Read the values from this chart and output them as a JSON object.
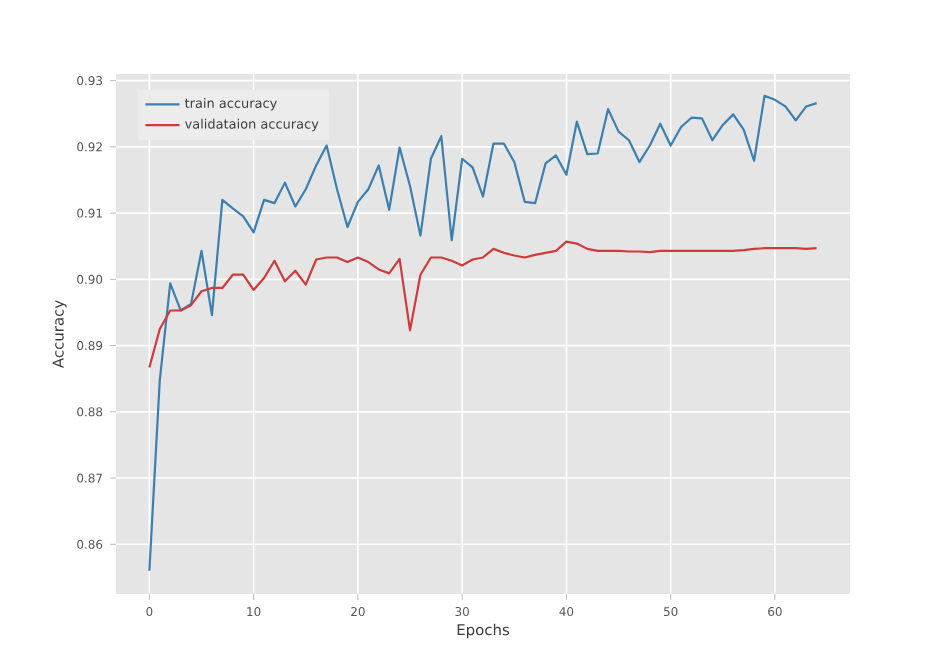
{
  "chart_data": {
    "type": "line",
    "xlabel": "Epochs",
    "ylabel": "Accuracy",
    "x": [
      0,
      1,
      2,
      3,
      4,
      5,
      6,
      7,
      8,
      9,
      10,
      11,
      12,
      13,
      14,
      15,
      16,
      17,
      18,
      19,
      20,
      21,
      22,
      23,
      24,
      25,
      26,
      27,
      28,
      29,
      30,
      31,
      32,
      33,
      34,
      35,
      36,
      37,
      38,
      39,
      40,
      41,
      42,
      43,
      44,
      45,
      46,
      47,
      48,
      49,
      50,
      51,
      52,
      53,
      54,
      55,
      56,
      57,
      58,
      59,
      60,
      61,
      62,
      63,
      64
    ],
    "series": [
      {
        "name": "train accuracy",
        "color": "#3a7fb0",
        "values": [
          0.856,
          0.8848,
          0.8994,
          0.8953,
          0.8963,
          0.9043,
          0.8946,
          0.912,
          0.9107,
          0.9095,
          0.9071,
          0.912,
          0.9115,
          0.9146,
          0.911,
          0.9136,
          0.9172,
          0.9202,
          0.9136,
          0.9079,
          0.9117,
          0.9136,
          0.9172,
          0.9105,
          0.9199,
          0.9141,
          0.9066,
          0.9182,
          0.9216,
          0.9059,
          0.9182,
          0.9169,
          0.9125,
          0.9205,
          0.9205,
          0.9177,
          0.9117,
          0.9115,
          0.9175,
          0.9187,
          0.9158,
          0.9238,
          0.9189,
          0.919,
          0.9257,
          0.9223,
          0.921,
          0.9177,
          0.9202,
          0.9235,
          0.9202,
          0.923,
          0.9244,
          0.9243,
          0.921,
          0.9233,
          0.9249,
          0.9226,
          0.9179,
          0.9277,
          0.9271,
          0.9261,
          0.924,
          0.9261,
          0.9266
        ]
      },
      {
        "name": "validataion accuracy",
        "color": "#d03a3a",
        "values": [
          0.8867,
          0.8925,
          0.8953,
          0.8953,
          0.8961,
          0.8982,
          0.8987,
          0.8987,
          0.9007,
          0.9007,
          0.8984,
          0.9002,
          0.9028,
          0.8997,
          0.9013,
          0.8992,
          0.903,
          0.9033,
          0.9033,
          0.9026,
          0.9033,
          0.9026,
          0.9015,
          0.9009,
          0.9031,
          0.8923,
          0.9007,
          0.9033,
          0.9033,
          0.9028,
          0.9021,
          0.903,
          0.9033,
          0.9046,
          0.904,
          0.9036,
          0.9033,
          0.9037,
          0.904,
          0.9043,
          0.9057,
          0.9054,
          0.9046,
          0.9043,
          0.9043,
          0.9043,
          0.9042,
          0.9042,
          0.9041,
          0.9043,
          0.9043,
          0.9043,
          0.9043,
          0.9043,
          0.9043,
          0.9043,
          0.9043,
          0.9044,
          0.9046,
          0.9047,
          0.9047,
          0.9047,
          0.9047,
          0.9046,
          0.9047
        ]
      }
    ],
    "xlim": [
      -3.2,
      67.2
    ],
    "ylim": [
      0.8525,
      0.931
    ],
    "xticks": [
      0,
      10,
      20,
      30,
      40,
      50,
      60
    ],
    "yticks": [
      0.86,
      0.87,
      0.88,
      0.89,
      {
        "value": 0.9,
        "label": "0.90"
      },
      0.91,
      0.92,
      0.93
    ],
    "grid": true,
    "legend": "top left",
    "marker": "none",
    "line_style": "solid"
  }
}
